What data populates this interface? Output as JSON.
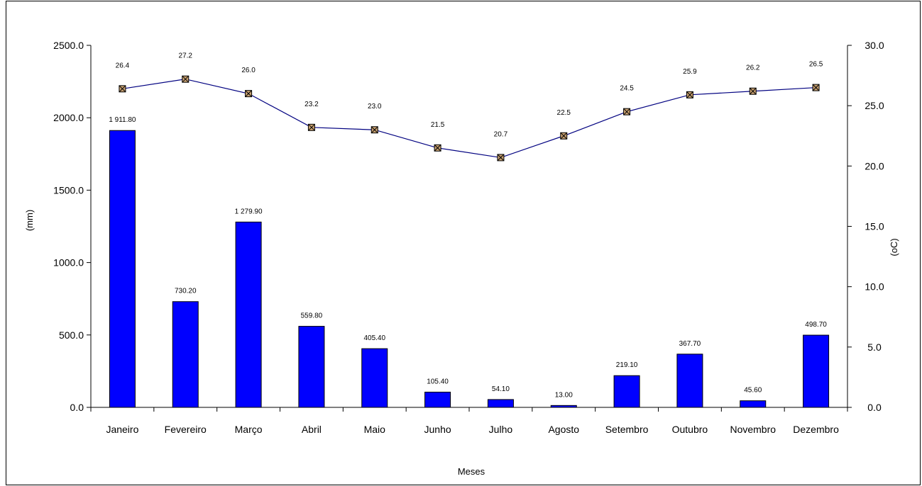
{
  "chart_data": {
    "type": "bar",
    "categories": [
      "Janeiro",
      "Fevereiro",
      "Março",
      "Abril",
      "Maio",
      "Junho",
      "Julho",
      "Agosto",
      "Setembro",
      "Outubro",
      "Novembro",
      "Dezembro"
    ],
    "series": [
      {
        "type": "bar",
        "axis": "left",
        "values": [
          1911.8,
          730.2,
          1279.9,
          559.8,
          405.4,
          105.4,
          54.1,
          13.0,
          219.1,
          367.7,
          45.6,
          498.7
        ],
        "data_labels": [
          "1 911.80",
          "730.20",
          "1 279.90",
          "559.80",
          "405.40",
          "105.40",
          "54.10",
          "13.00",
          "219.10",
          "367.70",
          "45.60",
          "498.70"
        ],
        "color": "#0000ff"
      },
      {
        "type": "line",
        "axis": "right",
        "values": [
          26.4,
          27.2,
          26.0,
          23.2,
          23.0,
          21.5,
          20.7,
          22.5,
          24.5,
          25.9,
          26.2,
          26.5
        ],
        "data_labels": [
          "26.4",
          "27.2",
          "26.0",
          "23.2",
          "23.0",
          "21.5",
          "20.7",
          "22.5",
          "24.5",
          "25.9",
          "26.2",
          "26.5"
        ],
        "color": "#000080",
        "marker_color": "#c8a070"
      }
    ],
    "xlabel": "Meses",
    "ylabel": "(mm)",
    "y2label": "(oC)",
    "ylim": [
      0,
      2500
    ],
    "y2lim": [
      0,
      30
    ],
    "yticks": [
      "0.0",
      "500.0",
      "1000.0",
      "1500.0",
      "2000.0",
      "2500.0"
    ],
    "y2ticks": [
      "0.0",
      "5.0",
      "10.0",
      "15.0",
      "20.0",
      "25.0",
      "30.0"
    ],
    "grid": false,
    "legend": "none"
  }
}
